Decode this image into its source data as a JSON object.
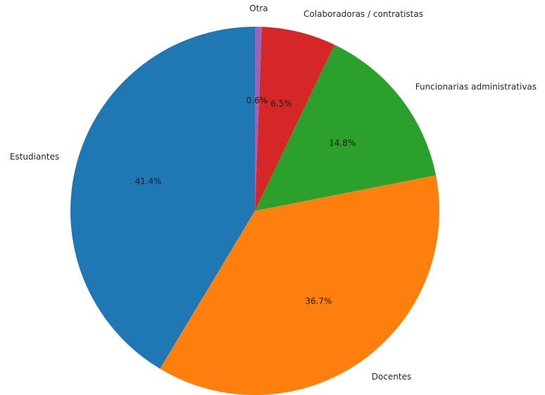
{
  "chart_data": {
    "type": "pie",
    "title": "",
    "start_angle_deg": 90,
    "direction": "counterclockwise",
    "legend": "none",
    "slices": [
      {
        "label": "Estudiantes",
        "value": 41.4,
        "pct_label": "41.4%",
        "color": "#1f77b4"
      },
      {
        "label": "Docentes",
        "value": 36.7,
        "pct_label": "36.7%",
        "color": "#ff7f0e"
      },
      {
        "label": "Funcionarias administrativas",
        "value": 14.8,
        "pct_label": "14.8%",
        "color": "#2ca02c"
      },
      {
        "label": "Colaboradoras / contratistas",
        "value": 6.5,
        "pct_label": "6.5%",
        "color": "#d62728"
      },
      {
        "label": "Otra",
        "value": 0.6,
        "pct_label": "0.6%",
        "color": "#9467bd"
      }
    ]
  }
}
